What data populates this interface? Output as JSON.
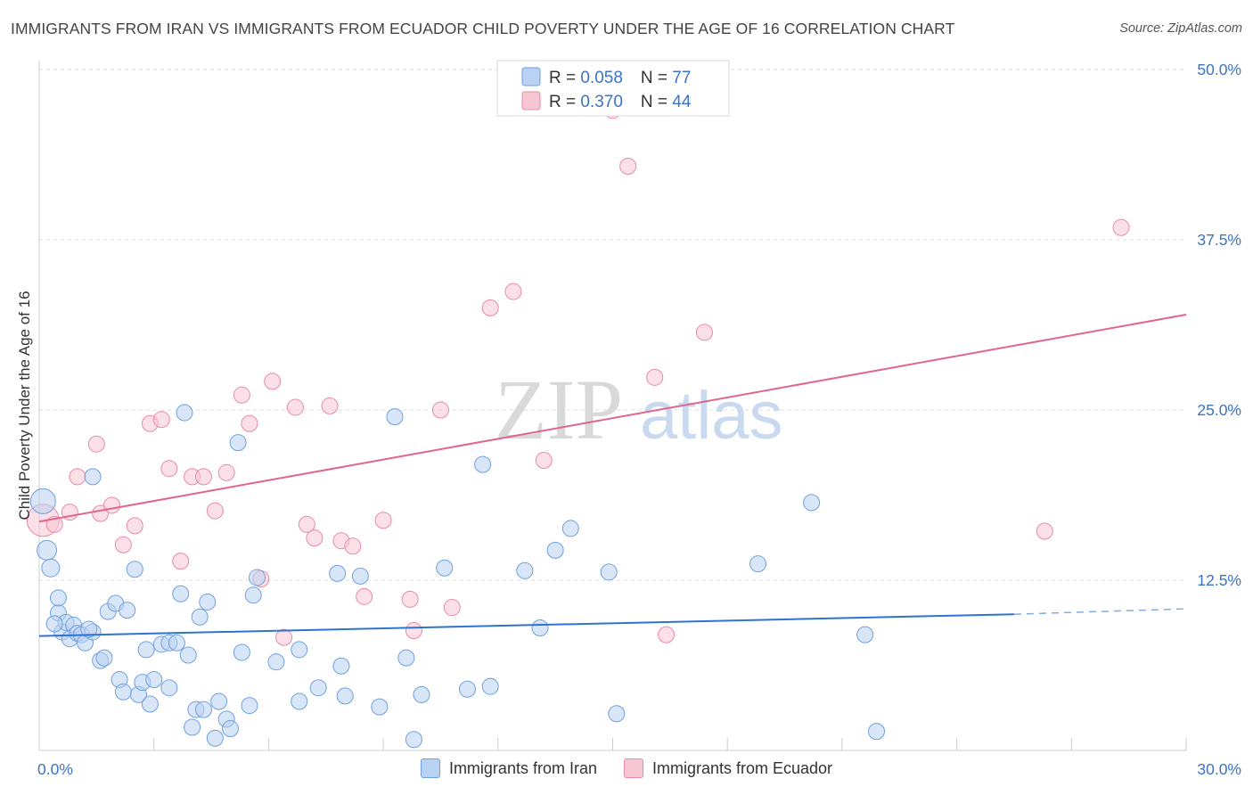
{
  "header": {
    "title": "IMMIGRANTS FROM IRAN VS IMMIGRANTS FROM ECUADOR CHILD POVERTY UNDER THE AGE OF 16 CORRELATION CHART",
    "source": "Source: ZipAtlas.com"
  },
  "watermark": {
    "zip": "ZIP",
    "atlas": "atlas"
  },
  "colors": {
    "iran": "#6fa0e0",
    "iran_fill": "#b9d1f3",
    "iran_line": "#2f73d0",
    "ecuador": "#e98aa6",
    "ecuador_fill": "#f7c6d4",
    "ecuador_line": "#e0668c",
    "tick_text": "#3a74c4"
  },
  "stats": {
    "iran": {
      "r_label": "R = ",
      "r": "0.058",
      "n_label": "N = ",
      "n": "77"
    },
    "ecuador": {
      "r_label": "R = ",
      "r": "0.370",
      "n_label": "N = ",
      "n": "44"
    }
  },
  "chart_data": {
    "type": "scatter",
    "xlabel": "",
    "ylabel": "Child Poverty Under the Age of 16",
    "xlim": [
      0,
      30
    ],
    "ylim": [
      0,
      50
    ],
    "x_tick_labels": [
      "0.0%",
      "30.0%"
    ],
    "y_tick_labels": [
      "12.5%",
      "25.0%",
      "37.5%",
      "50.0%"
    ],
    "y_ticks": [
      12.5,
      25,
      37.5,
      50
    ],
    "grid": "horizontal dashed",
    "legend": "top-center, bottom",
    "series": [
      {
        "name": "Immigrants from Iran",
        "trend": {
          "x0": 0,
          "y0": 8.4,
          "x1": 25.5,
          "y1": 10.0,
          "dashed_to_x": 30,
          "dashed_to_y": 10.4
        },
        "points": [
          [
            0.1,
            18.3,
            14
          ],
          [
            0.2,
            14.7,
            11
          ],
          [
            0.3,
            13.4,
            10
          ],
          [
            0.5,
            10.1,
            9
          ],
          [
            0.5,
            11.2,
            9
          ],
          [
            0.6,
            8.7,
            9
          ],
          [
            0.7,
            9.4,
            9
          ],
          [
            0.8,
            8.2,
            9
          ],
          [
            0.9,
            9.2,
            9
          ],
          [
            1.0,
            8.6,
            9
          ],
          [
            1.1,
            8.5,
            9
          ],
          [
            1.2,
            7.9,
            9
          ],
          [
            1.4,
            8.7,
            9
          ],
          [
            1.6,
            6.6,
            9
          ],
          [
            1.7,
            6.8,
            9
          ],
          [
            1.4,
            20.1,
            9
          ],
          [
            1.8,
            10.2,
            9
          ],
          [
            2.0,
            10.8,
            9
          ],
          [
            2.3,
            10.3,
            9
          ],
          [
            2.1,
            5.2,
            9
          ],
          [
            2.2,
            4.3,
            9
          ],
          [
            2.6,
            4.1,
            9
          ],
          [
            2.7,
            5.0,
            9
          ],
          [
            2.9,
            3.4,
            9
          ],
          [
            3.0,
            5.2,
            9
          ],
          [
            2.8,
            7.4,
            9
          ],
          [
            3.2,
            7.8,
            9
          ],
          [
            3.4,
            7.9,
            9
          ],
          [
            3.6,
            7.9,
            9
          ],
          [
            3.4,
            4.6,
            9
          ],
          [
            3.7,
            11.5,
            9
          ],
          [
            3.9,
            7.0,
            9
          ],
          [
            4.0,
            1.7,
            9
          ],
          [
            4.1,
            3.0,
            9
          ],
          [
            4.3,
            3.0,
            9
          ],
          [
            4.2,
            9.8,
            9
          ],
          [
            4.4,
            10.9,
            9
          ],
          [
            4.6,
            0.9,
            9
          ],
          [
            4.7,
            3.6,
            9
          ],
          [
            4.9,
            2.3,
            9
          ],
          [
            5.0,
            1.6,
            9
          ],
          [
            5.2,
            22.6,
            9
          ],
          [
            5.3,
            7.2,
            9
          ],
          [
            5.5,
            3.3,
            9
          ],
          [
            5.6,
            11.4,
            9
          ],
          [
            5.7,
            12.7,
            9
          ],
          [
            6.2,
            6.5,
            9
          ],
          [
            6.8,
            7.4,
            9
          ],
          [
            6.8,
            3.6,
            9
          ],
          [
            7.3,
            4.6,
            9
          ],
          [
            7.8,
            13.0,
            9
          ],
          [
            7.9,
            6.2,
            9
          ],
          [
            8.0,
            4.0,
            9
          ],
          [
            8.4,
            12.8,
            9
          ],
          [
            8.9,
            3.2,
            9
          ],
          [
            9.3,
            24.5,
            9
          ],
          [
            9.6,
            6.8,
            9
          ],
          [
            9.8,
            0.8,
            9
          ],
          [
            10.0,
            4.1,
            9
          ],
          [
            10.6,
            13.4,
            9
          ],
          [
            11.2,
            4.5,
            9
          ],
          [
            11.6,
            21.0,
            9
          ],
          [
            11.8,
            4.7,
            9
          ],
          [
            12.7,
            13.2,
            9
          ],
          [
            13.1,
            9.0,
            9
          ],
          [
            13.5,
            14.7,
            9
          ],
          [
            13.9,
            16.3,
            9
          ],
          [
            14.9,
            13.1,
            9
          ],
          [
            15.1,
            2.7,
            9
          ],
          [
            18.8,
            13.7,
            9
          ],
          [
            20.2,
            18.2,
            9
          ],
          [
            21.6,
            8.5,
            9
          ],
          [
            21.9,
            1.4,
            9
          ],
          [
            3.8,
            24.8,
            9
          ],
          [
            0.4,
            9.3,
            9
          ],
          [
            1.3,
            8.9,
            9
          ],
          [
            2.5,
            13.3,
            9
          ]
        ]
      },
      {
        "name": "Immigrants from Ecuador",
        "trend": {
          "x0": 0,
          "y0": 16.8,
          "x1": 30,
          "y1": 32.0
        },
        "points": [
          [
            0.1,
            16.9,
            18
          ],
          [
            0.4,
            16.6,
            9
          ],
          [
            0.8,
            17.5,
            9
          ],
          [
            1.0,
            20.1,
            9
          ],
          [
            1.5,
            22.5,
            9
          ],
          [
            1.6,
            17.4,
            9
          ],
          [
            1.9,
            18.0,
            9
          ],
          [
            2.2,
            15.1,
            9
          ],
          [
            2.5,
            16.5,
            9
          ],
          [
            2.9,
            24.0,
            9
          ],
          [
            3.2,
            24.3,
            9
          ],
          [
            3.4,
            20.7,
            9
          ],
          [
            3.7,
            13.9,
            9
          ],
          [
            4.0,
            20.1,
            9
          ],
          [
            4.3,
            20.1,
            9
          ],
          [
            4.6,
            17.6,
            9
          ],
          [
            4.9,
            20.4,
            9
          ],
          [
            5.3,
            26.1,
            9
          ],
          [
            5.5,
            24.0,
            9
          ],
          [
            5.8,
            12.6,
            9
          ],
          [
            6.1,
            27.1,
            9
          ],
          [
            6.4,
            8.3,
            9
          ],
          [
            6.7,
            25.2,
            9
          ],
          [
            7.0,
            16.6,
            9
          ],
          [
            7.2,
            15.6,
            9
          ],
          [
            7.6,
            25.3,
            9
          ],
          [
            7.9,
            15.4,
            9
          ],
          [
            8.2,
            15.0,
            9
          ],
          [
            8.5,
            11.3,
            9
          ],
          [
            9.0,
            16.9,
            9
          ],
          [
            9.7,
            11.1,
            9
          ],
          [
            9.8,
            8.8,
            9
          ],
          [
            10.5,
            25.0,
            9
          ],
          [
            10.8,
            10.5,
            9
          ],
          [
            11.8,
            32.5,
            9
          ],
          [
            12.4,
            33.7,
            9
          ],
          [
            13.2,
            21.3,
            9
          ],
          [
            15.0,
            47.0,
            9
          ],
          [
            15.4,
            42.9,
            9
          ],
          [
            16.1,
            27.4,
            9
          ],
          [
            16.4,
            8.5,
            9
          ],
          [
            17.4,
            30.7,
            9
          ],
          [
            26.3,
            16.1,
            9
          ],
          [
            28.3,
            38.4,
            9
          ]
        ]
      }
    ]
  },
  "legend_bottom": [
    {
      "label": "Immigrants from Iran"
    },
    {
      "label": "Immigrants from Ecuador"
    }
  ]
}
